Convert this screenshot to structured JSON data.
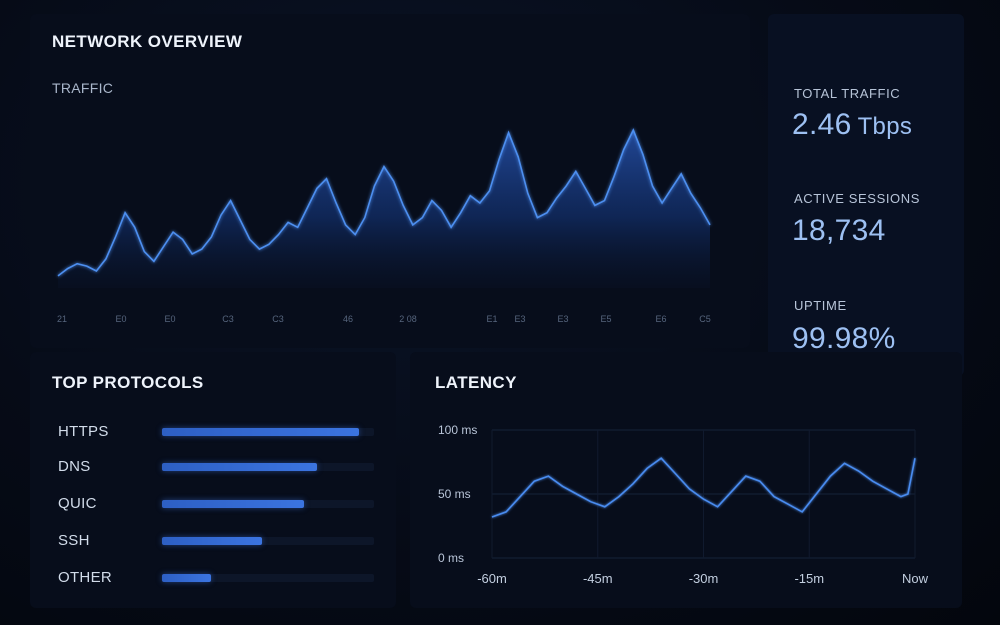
{
  "header": {
    "title": "NETWORK OVERVIEW"
  },
  "traffic": {
    "label": "TRAFFIC",
    "x_tick_labels": [
      "21",
      "E0",
      "E0",
      "C3",
      "C3",
      "46",
      "2 08",
      "E1",
      "E3",
      "E3",
      "E5",
      "E6",
      "C5"
    ],
    "chart_data": {
      "type": "area",
      "title": "TRAFFIC",
      "series": [
        {
          "values": [
            10,
            16,
            20,
            18,
            14,
            24,
            42,
            62,
            50,
            30,
            22,
            34,
            46,
            40,
            28,
            32,
            42,
            60,
            72,
            56,
            40,
            32,
            36,
            44,
            54,
            50,
            66,
            82,
            90,
            70,
            52,
            44,
            58,
            84,
            100,
            88,
            68,
            52,
            58,
            72,
            64,
            50,
            62,
            76,
            70,
            80,
            106,
            128,
            108,
            78,
            58,
            62,
            74,
            84,
            96,
            82,
            68,
            72,
            92,
            114,
            130,
            110,
            84,
            70,
            82,
            94,
            78,
            66,
            52
          ]
        }
      ]
    }
  },
  "stats": {
    "total_traffic": {
      "label": "TOTAL TRAFFIC",
      "value": "2.46",
      "unit": "Tbps"
    },
    "active_sessions": {
      "label": "ACTIVE SESSIONS",
      "value": "18,734"
    },
    "uptime": {
      "label": "UPTIME",
      "value": "99.98%"
    }
  },
  "protocols": {
    "title": "TOP PROTOCOLS",
    "items": [
      {
        "name": "HTTPS",
        "share": 0.93
      },
      {
        "name": "DNS",
        "share": 0.73
      },
      {
        "name": "QUIC",
        "share": 0.67
      },
      {
        "name": "SSH",
        "share": 0.47
      },
      {
        "name": "OTHER",
        "share": 0.23
      }
    ]
  },
  "latency": {
    "title": "LATENCY",
    "chart_data": {
      "type": "line",
      "title": "LATENCY",
      "y_tick_labels": [
        "100 ms",
        "50 ms",
        "0 ms"
      ],
      "ylim": [
        0,
        100
      ],
      "x_tick_labels": [
        "-60m",
        "-45m",
        "-30m",
        "-15m",
        "Now"
      ],
      "xlim": [
        -60,
        0
      ],
      "grid": true,
      "series": [
        {
          "x": [
            -60,
            -58,
            -56,
            -54,
            -52,
            -50,
            -48,
            -46,
            -44,
            -42,
            -40,
            -38,
            -36,
            -34,
            -32,
            -30,
            -28,
            -26,
            -24,
            -22,
            -20,
            -18,
            -16,
            -14,
            -12,
            -10,
            -8,
            -6,
            -4,
            -2,
            -1,
            0
          ],
          "values": [
            32,
            36,
            48,
            60,
            64,
            56,
            50,
            44,
            40,
            48,
            58,
            70,
            78,
            66,
            54,
            46,
            40,
            52,
            64,
            60,
            48,
            42,
            36,
            50,
            64,
            74,
            68,
            60,
            54,
            48,
            50,
            78
          ]
        }
      ]
    }
  }
}
